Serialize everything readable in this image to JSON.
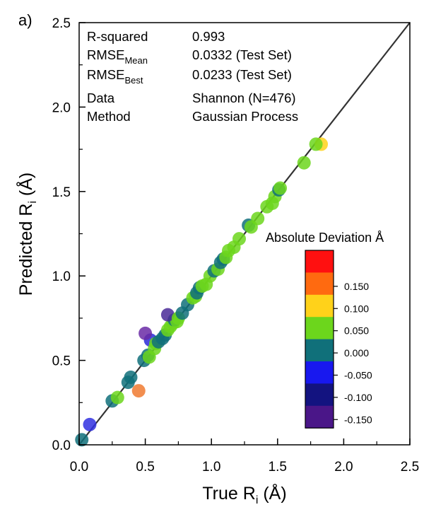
{
  "chart_data": {
    "type": "scatter",
    "panel_label": "a)",
    "xlabel": {
      "main": "True R",
      "sub": "i",
      "unit": " (Å)"
    },
    "ylabel": {
      "main": "Predicted R",
      "sub": "i",
      "unit": " (Å)"
    },
    "xlim": [
      0.0,
      2.5
    ],
    "ylim": [
      0.0,
      2.5
    ],
    "x_ticks": [
      "0.0",
      "0.5",
      "1.0",
      "1.5",
      "2.0",
      "2.5"
    ],
    "y_ticks": [
      "0.0",
      "0.5",
      "1.0",
      "1.5",
      "2.0",
      "2.5"
    ],
    "grid": false,
    "reference_line": {
      "from": [
        0,
        0
      ],
      "to": [
        2.5,
        2.5
      ],
      "color": "#333333"
    },
    "info_rows": [
      {
        "label": "R-squared",
        "label_sub": "",
        "value": "0.993"
      },
      {
        "label": "RMSE",
        "label_sub": "Mean",
        "value": "0.0332  (Test Set)"
      },
      {
        "label": "RMSE",
        "label_sub": "Best",
        "value": "0.0233  (Test Set)"
      },
      {
        "label": "Data",
        "label_sub": "",
        "value": "Shannon (N=476)"
      },
      {
        "label": "Method",
        "label_sub": "",
        "value": "Gaussian Process"
      }
    ],
    "colorbar": {
      "title": "Absolute Deviation Å",
      "bins": [
        {
          "color": "#ff1010"
        },
        {
          "color": "#ff6a10",
          "label": "0.150"
        },
        {
          "color": "#ffd21a",
          "label": "0.100"
        },
        {
          "color": "#6cd61c",
          "label": "0.050"
        },
        {
          "color": "#10707a",
          "label": "0.000"
        },
        {
          "color": "#1818ef",
          "label": "-0.050"
        },
        {
          "color": "#131380",
          "label": "-0.100"
        },
        {
          "color": "#4a1688",
          "label": "-0.150"
        }
      ]
    },
    "points": [
      {
        "x": 0.02,
        "y": 0.03,
        "color": "#10707a"
      },
      {
        "x": 0.08,
        "y": 0.12,
        "color": "#3030e0"
      },
      {
        "x": 0.25,
        "y": 0.26,
        "color": "#10707a"
      },
      {
        "x": 0.29,
        "y": 0.28,
        "color": "#6cd61c"
      },
      {
        "x": 0.39,
        "y": 0.4,
        "color": "#10707a"
      },
      {
        "x": 0.37,
        "y": 0.37,
        "color": "#10707a"
      },
      {
        "x": 0.45,
        "y": 0.32,
        "color": "#f07a30"
      },
      {
        "x": 0.49,
        "y": 0.5,
        "color": "#10707a"
      },
      {
        "x": 0.52,
        "y": 0.53,
        "color": "#10707a"
      },
      {
        "x": 0.53,
        "y": 0.52,
        "color": "#6cd61c"
      },
      {
        "x": 0.54,
        "y": 0.62,
        "color": "#2a2ad8"
      },
      {
        "x": 0.57,
        "y": 0.57,
        "color": "#6cd61c"
      },
      {
        "x": 0.58,
        "y": 0.6,
        "color": "#6cd61c"
      },
      {
        "x": 0.6,
        "y": 0.61,
        "color": "#10707a"
      },
      {
        "x": 0.63,
        "y": 0.63,
        "color": "#10707a"
      },
      {
        "x": 0.65,
        "y": 0.65,
        "color": "#10707a"
      },
      {
        "x": 0.5,
        "y": 0.66,
        "color": "#6a2aa6"
      },
      {
        "x": 0.67,
        "y": 0.68,
        "color": "#6cd61c"
      },
      {
        "x": 0.69,
        "y": 0.7,
        "color": "#6cd61c"
      },
      {
        "x": 0.71,
        "y": 0.72,
        "color": "#6cd61c"
      },
      {
        "x": 0.72,
        "y": 0.74,
        "color": "#10707a"
      },
      {
        "x": 0.74,
        "y": 0.73,
        "color": "#6cd61c"
      },
      {
        "x": 0.67,
        "y": 0.77,
        "color": "#4a2a98"
      },
      {
        "x": 0.75,
        "y": 0.75,
        "color": "#6cd61c"
      },
      {
        "x": 0.78,
        "y": 0.78,
        "color": "#10707a"
      },
      {
        "x": 0.82,
        "y": 0.83,
        "color": "#10707a"
      },
      {
        "x": 0.86,
        "y": 0.87,
        "color": "#6cd61c"
      },
      {
        "x": 0.88,
        "y": 0.88,
        "color": "#6cd61c"
      },
      {
        "x": 0.89,
        "y": 0.9,
        "color": "#10707a"
      },
      {
        "x": 0.91,
        "y": 0.93,
        "color": "#10707a"
      },
      {
        "x": 0.93,
        "y": 0.94,
        "color": "#6cd61c"
      },
      {
        "x": 0.96,
        "y": 0.95,
        "color": "#6cd61c"
      },
      {
        "x": 0.99,
        "y": 1.0,
        "color": "#6cd61c"
      },
      {
        "x": 1.02,
        "y": 1.03,
        "color": "#10707a"
      },
      {
        "x": 1.05,
        "y": 1.04,
        "color": "#6cd61c"
      },
      {
        "x": 1.07,
        "y": 1.08,
        "color": "#10707a"
      },
      {
        "x": 1.09,
        "y": 1.1,
        "color": "#10707a"
      },
      {
        "x": 1.11,
        "y": 1.11,
        "color": "#6cd61c"
      },
      {
        "x": 1.13,
        "y": 1.15,
        "color": "#6cd61c"
      },
      {
        "x": 1.17,
        "y": 1.17,
        "color": "#6cd61c"
      },
      {
        "x": 1.21,
        "y": 1.22,
        "color": "#6cd61c"
      },
      {
        "x": 1.28,
        "y": 1.3,
        "color": "#10707a"
      },
      {
        "x": 1.3,
        "y": 1.29,
        "color": "#6cd61c"
      },
      {
        "x": 1.35,
        "y": 1.34,
        "color": "#6cd61c"
      },
      {
        "x": 1.42,
        "y": 1.41,
        "color": "#6cd61c"
      },
      {
        "x": 1.46,
        "y": 1.43,
        "color": "#6cd61c"
      },
      {
        "x": 1.48,
        "y": 1.47,
        "color": "#6cd61c"
      },
      {
        "x": 1.51,
        "y": 1.51,
        "color": "#10707a"
      },
      {
        "x": 1.52,
        "y": 1.52,
        "color": "#6cd61c"
      },
      {
        "x": 1.7,
        "y": 1.67,
        "color": "#6cd61c"
      },
      {
        "x": 1.83,
        "y": 1.78,
        "color": "#ffd21a"
      },
      {
        "x": 1.79,
        "y": 1.78,
        "color": "#6cd61c"
      }
    ]
  }
}
